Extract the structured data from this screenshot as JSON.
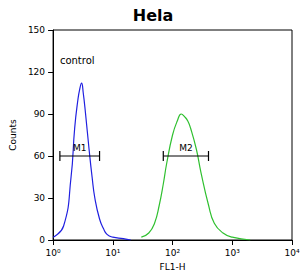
{
  "chart_data": {
    "type": "line",
    "title": "Hela",
    "x_label": "FL1-H",
    "y_label": "Counts",
    "log": "x",
    "grid": false,
    "xlim": [
      1,
      10000
    ],
    "xticks": [
      {
        "value": 1,
        "label": "10⁰"
      },
      {
        "value": 10,
        "label": "10¹"
      },
      {
        "value": 100,
        "label": "10²"
      },
      {
        "value": 1000,
        "label": "10³"
      },
      {
        "value": 10000,
        "label": "10⁴"
      }
    ],
    "ylim": [
      0,
      150
    ],
    "yticks": [
      0,
      30,
      60,
      90,
      120,
      150
    ],
    "series": [
      {
        "color": "#2020e0",
        "x": [
          1,
          1.5,
          2,
          2.3,
          2.6,
          2.8,
          3,
          3.2,
          3.5,
          4,
          4.5,
          5,
          6,
          7,
          8,
          10,
          15,
          20
        ],
        "values": [
          2,
          10,
          45,
          80,
          100,
          108,
          112,
          105,
          90,
          65,
          45,
          30,
          15,
          8,
          4,
          2,
          1,
          0
        ]
      },
      {
        "color": "#30c030",
        "x": [
          30,
          40,
          50,
          60,
          70,
          80,
          100,
          120,
          140,
          160,
          180,
          200,
          250,
          300,
          400,
          500,
          700,
          1000,
          2000
        ],
        "values": [
          2,
          5,
          12,
          25,
          40,
          55,
          75,
          85,
          90,
          88,
          85,
          80,
          65,
          48,
          25,
          12,
          5,
          2,
          0
        ]
      }
    ],
    "markers": [
      {
        "label": "M1",
        "x": [
          1.3,
          6
        ],
        "y": 60
      },
      {
        "label": "M2",
        "x": [
          70,
          400
        ],
        "y": 60
      }
    ],
    "annotations": [
      {
        "text": "control",
        "x": 1.3,
        "y": 128
      }
    ]
  }
}
